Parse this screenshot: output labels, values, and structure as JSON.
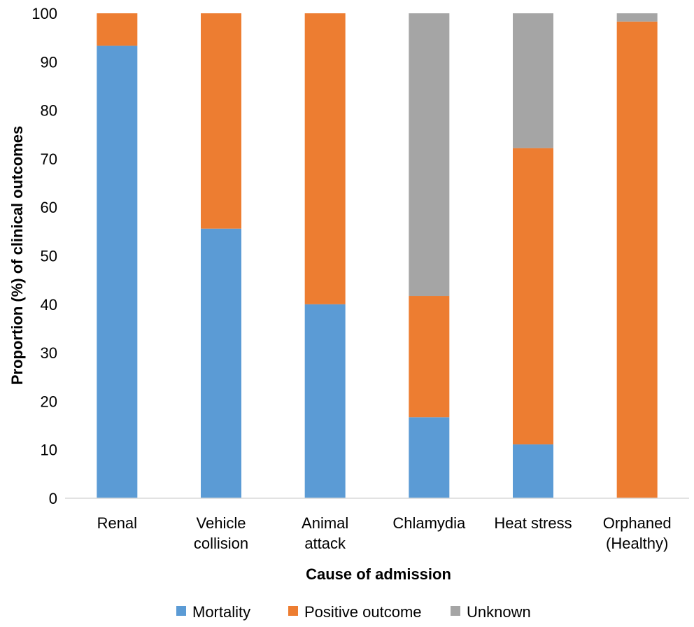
{
  "chart_data": {
    "type": "bar",
    "stacked": true,
    "categories": [
      [
        "Renal"
      ],
      [
        "Vehicle",
        "collision"
      ],
      [
        "Animal",
        "attack"
      ],
      [
        "Chlamydia"
      ],
      [
        "Heat stress"
      ],
      [
        "Orphaned",
        "(Healthy)"
      ]
    ],
    "series": [
      {
        "name": "Mortality",
        "color": "#5b9bd5",
        "values": [
          93.3,
          55.6,
          40.0,
          16.7,
          11.1,
          0
        ]
      },
      {
        "name": "Positive outcome",
        "color": "#ed7d31",
        "values": [
          6.7,
          44.4,
          60.0,
          25.0,
          61.1,
          98.3
        ]
      },
      {
        "name": "Unknown",
        "color": "#a5a5a5",
        "values": [
          0,
          0,
          0,
          58.3,
          27.8,
          1.7
        ]
      }
    ],
    "xlabel": "Cause of admission",
    "ylabel": "Proportion (%) of clinical outcomes",
    "ylim": [
      0,
      100
    ],
    "yticks": [
      "0",
      "10",
      "20",
      "30",
      "40",
      "50",
      "60",
      "70",
      "80",
      "90",
      "100"
    ],
    "grid": false,
    "legend_position": "bottom"
  }
}
